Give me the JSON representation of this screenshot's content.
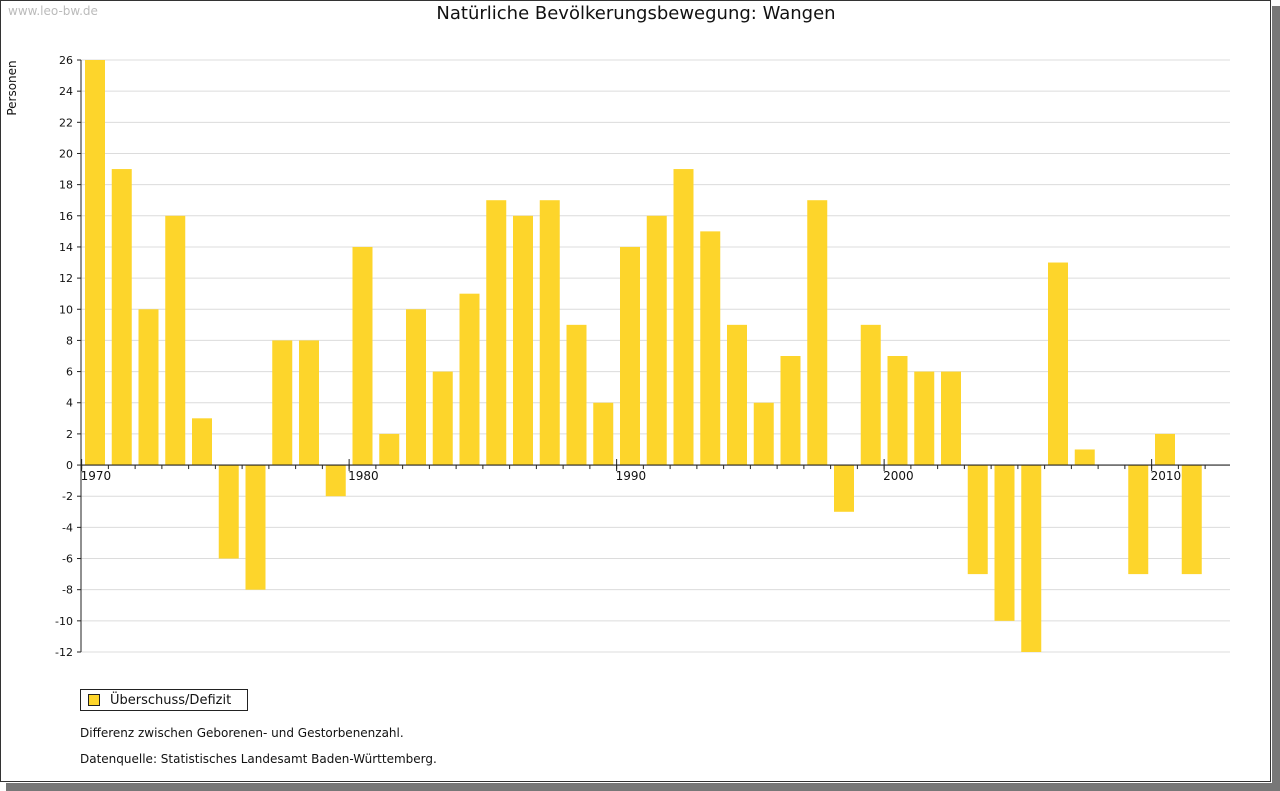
{
  "watermark": "www.leo-bw.de",
  "chart_data": {
    "type": "bar",
    "title": "Natürliche Bevölkerungsbewegung: Wangen",
    "ylabel": "Personen",
    "xlabel": "",
    "ylim": [
      -12,
      26
    ],
    "yticks": [
      26,
      24,
      22,
      20,
      18,
      16,
      14,
      12,
      10,
      8,
      6,
      4,
      2,
      0,
      -2,
      -4,
      -6,
      -8,
      -10,
      -12
    ],
    "x_tick_labels": [
      "1970",
      "1980",
      "1990",
      "2000",
      "2010"
    ],
    "grid": true,
    "color": "#fdd52b",
    "categories": [
      1970,
      1971,
      1972,
      1973,
      1974,
      1975,
      1976,
      1977,
      1978,
      1979,
      1980,
      1981,
      1982,
      1983,
      1984,
      1985,
      1986,
      1987,
      1988,
      1989,
      1990,
      1991,
      1992,
      1993,
      1994,
      1995,
      1996,
      1997,
      1998,
      1999,
      2000,
      2001,
      2002,
      2003,
      2004,
      2005,
      2006,
      2007,
      2008,
      2009,
      2010,
      2011
    ],
    "series": [
      {
        "name": "Überschuss/Defizit",
        "values": [
          26,
          19,
          10,
          16,
          3,
          -6,
          -8,
          8,
          8,
          -2,
          14,
          2,
          10,
          6,
          11,
          17,
          16,
          17,
          9,
          4,
          14,
          16,
          19,
          15,
          9,
          4,
          7,
          17,
          -3,
          9,
          7,
          6,
          6,
          -7,
          -10,
          -12,
          13,
          1,
          0,
          -7,
          2,
          -7
        ]
      }
    ],
    "legend_position": "bottom-left"
  },
  "notes": {
    "definition": "Differenz zwischen Geborenen- und Gestorbenenzahl.",
    "source": "Datenquelle: Statistisches Landesamt Baden-Württemberg."
  }
}
